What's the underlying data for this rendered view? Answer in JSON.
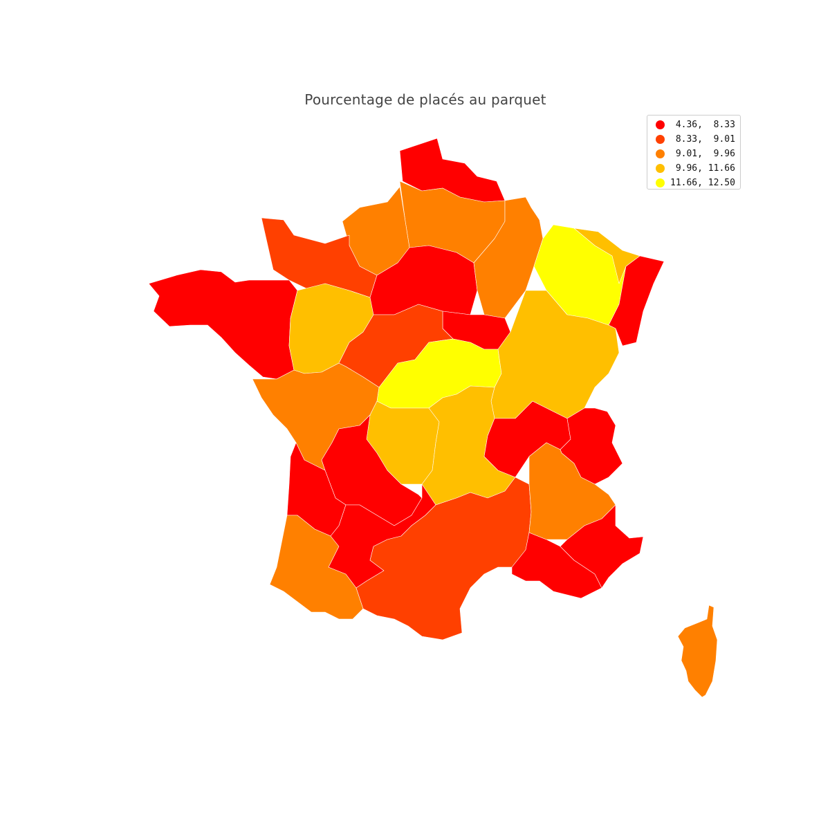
{
  "title": "Pourcentage de placés au parquet",
  "legend": [
    {
      "label": " 4.36,  8.33",
      "color": "#ff0000"
    },
    {
      "label": " 8.33,  9.01",
      "color": "#ff4000"
    },
    {
      "label": " 9.01,  9.96",
      "color": "#ff8000"
    },
    {
      "label": " 9.96, 11.66",
      "color": "#ffbf00"
    },
    {
      "label": "11.66, 12.50",
      "color": "#ffff00"
    }
  ],
  "colors": {
    "class1": "#ff0000",
    "class2": "#ff4000",
    "class3": "#ff8000",
    "class4": "#ffbf00",
    "class5": "#ffff00"
  }
}
